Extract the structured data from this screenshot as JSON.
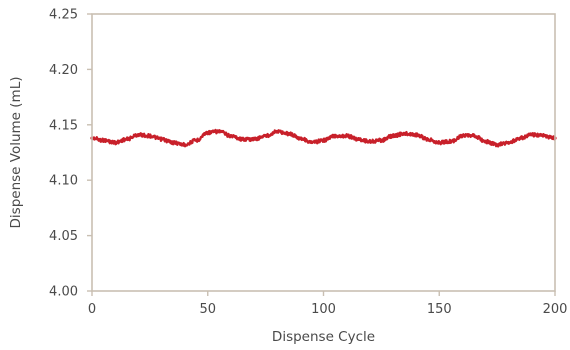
{
  "chart_data": {
    "type": "line",
    "title": "",
    "xlabel": "Dispense Cycle",
    "ylabel": "Dispense Volume (mL)",
    "xlim": [
      0,
      200
    ],
    "ylim": [
      4.0,
      4.25
    ],
    "x_ticks": [
      0,
      50,
      100,
      150,
      200
    ],
    "y_ticks": [
      4.0,
      4.05,
      4.1,
      4.15,
      4.2,
      4.25
    ],
    "x_tick_labels": [
      "0",
      "50",
      "100",
      "150",
      "200"
    ],
    "y_tick_labels": [
      "4.00",
      "4.05",
      "4.10",
      "4.15",
      "4.20",
      "4.25"
    ],
    "grid": false,
    "legend": false,
    "series": [
      {
        "color": "#c8202a",
        "x": [
          0,
          5,
          10,
          15,
          20,
          25,
          30,
          35,
          40,
          45,
          50,
          55,
          60,
          65,
          70,
          75,
          80,
          85,
          90,
          95,
          100,
          105,
          110,
          115,
          120,
          125,
          130,
          135,
          140,
          145,
          150,
          155,
          160,
          165,
          170,
          175,
          180,
          185,
          190,
          195,
          200
        ],
        "y": [
          4.138,
          4.136,
          4.134,
          4.137,
          4.141,
          4.14,
          4.137,
          4.134,
          4.132,
          4.136,
          4.143,
          4.144,
          4.14,
          4.137,
          4.137,
          4.14,
          4.144,
          4.142,
          4.138,
          4.134,
          4.136,
          4.14,
          4.14,
          4.137,
          4.135,
          4.136,
          4.14,
          4.142,
          4.141,
          4.137,
          4.134,
          4.135,
          4.14,
          4.14,
          4.135,
          4.132,
          4.134,
          4.138,
          4.141,
          4.14,
          4.138
        ]
      }
    ]
  }
}
